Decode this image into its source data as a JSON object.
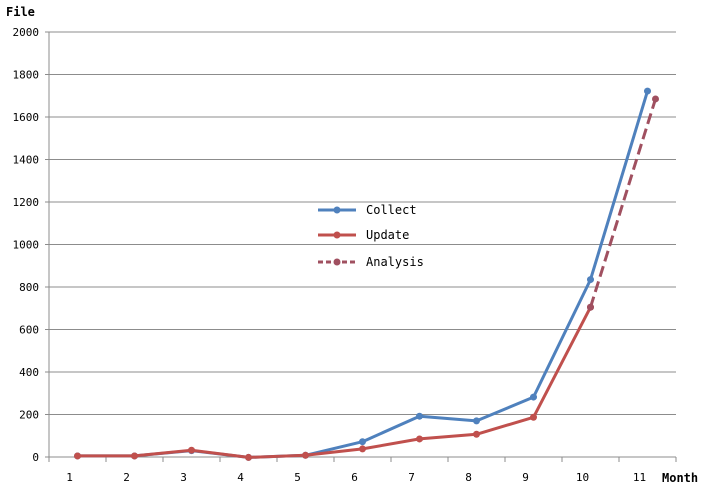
{
  "chart_data": {
    "type": "line",
    "title": "",
    "xlabel": "Month",
    "ylabel": "File",
    "ylim": [
      0,
      2000
    ],
    "yticks": [
      0,
      200,
      400,
      600,
      800,
      1000,
      1200,
      1400,
      1600,
      1800,
      2000
    ],
    "categories": [
      "1",
      "2",
      "3",
      "4",
      "5",
      "6",
      "7",
      "8",
      "9",
      "10",
      "11"
    ],
    "grid": true,
    "legend_position": "center",
    "series": [
      {
        "name": "Collect",
        "color": "#4f81bd",
        "style": "solid",
        "values": [
          5,
          5,
          30,
          -2,
          8,
          72,
          192,
          170,
          282,
          835,
          1722
        ]
      },
      {
        "name": "Update",
        "color": "#c0504d",
        "style": "solid",
        "values": [
          5,
          5,
          32,
          -2,
          8,
          38,
          85,
          107,
          187,
          705,
          null
        ]
      },
      {
        "name": "Analysis",
        "color": "#a05060",
        "style": "dashed",
        "values": [
          null,
          null,
          null,
          null,
          null,
          null,
          null,
          null,
          null,
          705,
          1685
        ]
      }
    ]
  }
}
